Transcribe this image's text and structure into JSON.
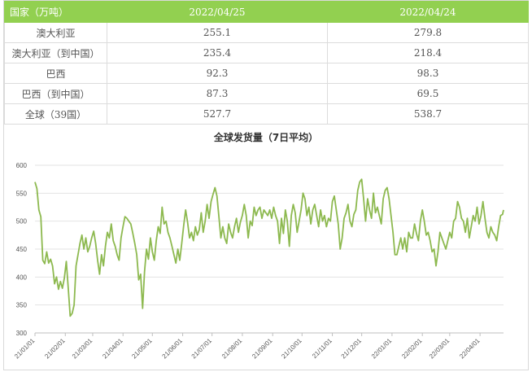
{
  "table": {
    "headers": [
      "国家（万吨）",
      "2022/04/25",
      "2022/04/24"
    ],
    "rows": [
      {
        "country": "澳大利亚",
        "v1": "255.1",
        "v2": "279.8"
      },
      {
        "country": "澳大利亚（到中国）",
        "v1": "235.4",
        "v2": "218.4"
      },
      {
        "country": "巴西",
        "v1": "92.3",
        "v2": "98.3"
      },
      {
        "country": "巴西（到中国）",
        "v1": "87.3",
        "v2": "69.5"
      },
      {
        "country": "全球（39国）",
        "v1": "527.7",
        "v2": "538.7"
      }
    ]
  },
  "chart_data": {
    "type": "line",
    "title": "全球发货量（7日平均）",
    "xlabel": "",
    "ylabel": "",
    "ylim": [
      300,
      600
    ],
    "y_ticks": [
      300,
      350,
      400,
      450,
      500,
      550,
      600
    ],
    "x_ticks": [
      "21/01/01",
      "21/02/01",
      "21/03/01",
      "21/04/01",
      "21/05/01",
      "21/06/01",
      "21/07/01",
      "21/08/01",
      "21/09/01",
      "21/10/01",
      "21/11/01",
      "21/12/01",
      "22/01/01",
      "22/02/01",
      "22/03/01",
      "22/04/01"
    ],
    "x_start": "2021-01-01",
    "x_end": "2022-04-25",
    "grid": true,
    "color": "#8db94f",
    "series": [
      {
        "name": "",
        "points": [
          [
            "2021-01-01",
            570
          ],
          [
            "2021-01-03",
            558
          ],
          [
            "2021-01-05",
            520
          ],
          [
            "2021-01-07",
            508
          ],
          [
            "2021-01-09",
            430
          ],
          [
            "2021-01-11",
            424
          ],
          [
            "2021-01-13",
            445
          ],
          [
            "2021-01-15",
            425
          ],
          [
            "2021-01-17",
            432
          ],
          [
            "2021-01-19",
            420
          ],
          [
            "2021-01-21",
            388
          ],
          [
            "2021-01-23",
            400
          ],
          [
            "2021-01-25",
            378
          ],
          [
            "2021-01-27",
            392
          ],
          [
            "2021-01-29",
            380
          ],
          [
            "2021-01-31",
            398
          ],
          [
            "2021-02-02",
            428
          ],
          [
            "2021-02-04",
            380
          ],
          [
            "2021-02-06",
            330
          ],
          [
            "2021-02-08",
            335
          ],
          [
            "2021-02-10",
            350
          ],
          [
            "2021-02-12",
            420
          ],
          [
            "2021-02-14",
            440
          ],
          [
            "2021-02-16",
            460
          ],
          [
            "2021-02-18",
            475
          ],
          [
            "2021-02-20",
            450
          ],
          [
            "2021-02-22",
            470
          ],
          [
            "2021-02-24",
            445
          ],
          [
            "2021-02-26",
            455
          ],
          [
            "2021-02-28",
            470
          ],
          [
            "2021-03-02",
            482
          ],
          [
            "2021-03-04",
            460
          ],
          [
            "2021-03-06",
            430
          ],
          [
            "2021-03-08",
            405
          ],
          [
            "2021-03-10",
            440
          ],
          [
            "2021-03-12",
            420
          ],
          [
            "2021-03-14",
            455
          ],
          [
            "2021-03-16",
            480
          ],
          [
            "2021-03-18",
            470
          ],
          [
            "2021-03-20",
            495
          ],
          [
            "2021-03-22",
            465
          ],
          [
            "2021-03-24",
            455
          ],
          [
            "2021-03-26",
            440
          ],
          [
            "2021-03-28",
            430
          ],
          [
            "2021-03-30",
            470
          ],
          [
            "2021-04-01",
            490
          ],
          [
            "2021-04-03",
            508
          ],
          [
            "2021-04-05",
            505
          ],
          [
            "2021-04-07",
            500
          ],
          [
            "2021-04-09",
            495
          ],
          [
            "2021-04-11",
            478
          ],
          [
            "2021-04-13",
            460
          ],
          [
            "2021-04-15",
            440
          ],
          [
            "2021-04-17",
            395
          ],
          [
            "2021-04-19",
            405
          ],
          [
            "2021-04-21",
            344
          ],
          [
            "2021-04-23",
            410
          ],
          [
            "2021-04-25",
            450
          ],
          [
            "2021-04-27",
            432
          ],
          [
            "2021-04-29",
            470
          ],
          [
            "2021-05-01",
            445
          ],
          [
            "2021-05-03",
            430
          ],
          [
            "2021-05-05",
            465
          ],
          [
            "2021-05-07",
            490
          ],
          [
            "2021-05-09",
            478
          ],
          [
            "2021-05-11",
            525
          ],
          [
            "2021-05-13",
            495
          ],
          [
            "2021-05-15",
            500
          ],
          [
            "2021-05-17",
            480
          ],
          [
            "2021-05-19",
            470
          ],
          [
            "2021-05-21",
            455
          ],
          [
            "2021-05-23",
            440
          ],
          [
            "2021-05-25",
            425
          ],
          [
            "2021-05-27",
            450
          ],
          [
            "2021-05-29",
            430
          ],
          [
            "2021-05-31",
            460
          ],
          [
            "2021-06-02",
            492
          ],
          [
            "2021-06-04",
            520
          ],
          [
            "2021-06-06",
            498
          ],
          [
            "2021-06-08",
            470
          ],
          [
            "2021-06-10",
            480
          ],
          [
            "2021-06-12",
            465
          ],
          [
            "2021-06-14",
            490
          ],
          [
            "2021-06-16",
            475
          ],
          [
            "2021-06-18",
            485
          ],
          [
            "2021-06-20",
            515
          ],
          [
            "2021-06-22",
            480
          ],
          [
            "2021-06-24",
            500
          ],
          [
            "2021-06-26",
            530
          ],
          [
            "2021-06-28",
            505
          ],
          [
            "2021-06-30",
            535
          ],
          [
            "2021-07-02",
            548
          ],
          [
            "2021-07-04",
            560
          ],
          [
            "2021-07-06",
            545
          ],
          [
            "2021-07-08",
            508
          ],
          [
            "2021-07-10",
            470
          ],
          [
            "2021-07-12",
            490
          ],
          [
            "2021-07-14",
            470
          ],
          [
            "2021-07-16",
            460
          ],
          [
            "2021-07-18",
            495
          ],
          [
            "2021-07-20",
            480
          ],
          [
            "2021-07-22",
            470
          ],
          [
            "2021-07-24",
            490
          ],
          [
            "2021-07-26",
            505
          ],
          [
            "2021-07-28",
            480
          ],
          [
            "2021-07-30",
            498
          ],
          [
            "2021-08-01",
            510
          ],
          [
            "2021-08-03",
            530
          ],
          [
            "2021-08-05",
            510
          ],
          [
            "2021-08-07",
            470
          ],
          [
            "2021-08-09",
            500
          ],
          [
            "2021-08-11",
            492
          ],
          [
            "2021-08-13",
            525
          ],
          [
            "2021-08-15",
            510
          ],
          [
            "2021-08-17",
            520
          ],
          [
            "2021-08-19",
            525
          ],
          [
            "2021-08-21",
            505
          ],
          [
            "2021-08-23",
            520
          ],
          [
            "2021-08-25",
            515
          ],
          [
            "2021-08-27",
            510
          ],
          [
            "2021-08-29",
            520
          ],
          [
            "2021-08-31",
            505
          ],
          [
            "2021-09-02",
            525
          ],
          [
            "2021-09-04",
            510
          ],
          [
            "2021-09-06",
            500
          ],
          [
            "2021-09-08",
            460
          ],
          [
            "2021-09-10",
            505
          ],
          [
            "2021-09-12",
            478
          ],
          [
            "2021-09-14",
            520
          ],
          [
            "2021-09-16",
            500
          ],
          [
            "2021-09-18",
            455
          ],
          [
            "2021-09-20",
            510
          ],
          [
            "2021-09-22",
            530
          ],
          [
            "2021-09-24",
            515
          ],
          [
            "2021-09-26",
            480
          ],
          [
            "2021-09-28",
            500
          ],
          [
            "2021-09-30",
            520
          ],
          [
            "2021-10-02",
            550
          ],
          [
            "2021-10-04",
            540
          ],
          [
            "2021-10-06",
            510
          ],
          [
            "2021-10-08",
            525
          ],
          [
            "2021-10-10",
            495
          ],
          [
            "2021-10-12",
            520
          ],
          [
            "2021-10-14",
            530
          ],
          [
            "2021-10-16",
            510
          ],
          [
            "2021-10-18",
            490
          ],
          [
            "2021-10-20",
            520
          ],
          [
            "2021-10-22",
            500
          ],
          [
            "2021-10-24",
            510
          ],
          [
            "2021-10-26",
            490
          ],
          [
            "2021-10-28",
            505
          ],
          [
            "2021-10-30",
            500
          ],
          [
            "2021-11-01",
            535
          ],
          [
            "2021-11-03",
            545
          ],
          [
            "2021-11-05",
            520
          ],
          [
            "2021-11-07",
            495
          ],
          [
            "2021-11-09",
            450
          ],
          [
            "2021-11-11",
            470
          ],
          [
            "2021-11-13",
            505
          ],
          [
            "2021-11-15",
            515
          ],
          [
            "2021-11-17",
            530
          ],
          [
            "2021-11-19",
            500
          ],
          [
            "2021-11-21",
            490
          ],
          [
            "2021-11-23",
            512
          ],
          [
            "2021-11-25",
            520
          ],
          [
            "2021-11-27",
            555
          ],
          [
            "2021-11-29",
            570
          ],
          [
            "2021-12-01",
            575
          ],
          [
            "2021-12-03",
            540
          ],
          [
            "2021-12-05",
            500
          ],
          [
            "2021-12-07",
            540
          ],
          [
            "2021-12-09",
            520
          ],
          [
            "2021-12-11",
            505
          ],
          [
            "2021-12-13",
            550
          ],
          [
            "2021-12-15",
            515
          ],
          [
            "2021-12-17",
            525
          ],
          [
            "2021-12-19",
            510
          ],
          [
            "2021-12-21",
            495
          ],
          [
            "2021-12-23",
            540
          ],
          [
            "2021-12-25",
            555
          ],
          [
            "2021-12-27",
            560
          ],
          [
            "2021-12-29",
            540
          ],
          [
            "2021-12-31",
            510
          ],
          [
            "2022-01-02",
            480
          ],
          [
            "2022-01-04",
            440
          ],
          [
            "2022-01-06",
            440
          ],
          [
            "2022-01-08",
            455
          ],
          [
            "2022-01-10",
            470
          ],
          [
            "2022-01-12",
            450
          ],
          [
            "2022-01-14",
            470
          ],
          [
            "2022-01-16",
            445
          ],
          [
            "2022-01-18",
            480
          ],
          [
            "2022-01-20",
            470
          ],
          [
            "2022-01-22",
            470
          ],
          [
            "2022-01-24",
            495
          ],
          [
            "2022-01-26",
            478
          ],
          [
            "2022-01-28",
            465
          ],
          [
            "2022-01-30",
            500
          ],
          [
            "2022-02-01",
            520
          ],
          [
            "2022-02-03",
            500
          ],
          [
            "2022-02-05",
            475
          ],
          [
            "2022-02-07",
            480
          ],
          [
            "2022-02-09",
            465
          ],
          [
            "2022-02-11",
            445
          ],
          [
            "2022-02-13",
            450
          ],
          [
            "2022-02-15",
            420
          ],
          [
            "2022-02-17",
            445
          ],
          [
            "2022-02-19",
            480
          ],
          [
            "2022-02-21",
            470
          ],
          [
            "2022-02-23",
            460
          ],
          [
            "2022-02-25",
            450
          ],
          [
            "2022-02-27",
            465
          ],
          [
            "2022-03-01",
            480
          ],
          [
            "2022-03-03",
            470
          ],
          [
            "2022-03-05",
            500
          ],
          [
            "2022-03-07",
            505
          ],
          [
            "2022-03-09",
            535
          ],
          [
            "2022-03-11",
            525
          ],
          [
            "2022-03-13",
            505
          ],
          [
            "2022-03-15",
            500
          ],
          [
            "2022-03-17",
            480
          ],
          [
            "2022-03-19",
            505
          ],
          [
            "2022-03-21",
            470
          ],
          [
            "2022-03-23",
            490
          ],
          [
            "2022-03-25",
            510
          ],
          [
            "2022-03-27",
            500
          ],
          [
            "2022-03-29",
            525
          ],
          [
            "2022-03-31",
            495
          ],
          [
            "2022-04-02",
            510
          ],
          [
            "2022-04-04",
            535
          ],
          [
            "2022-04-06",
            505
          ],
          [
            "2022-04-08",
            480
          ],
          [
            "2022-04-10",
            470
          ],
          [
            "2022-04-12",
            490
          ],
          [
            "2022-04-14",
            480
          ],
          [
            "2022-04-16",
            475
          ],
          [
            "2022-04-18",
            465
          ],
          [
            "2022-04-20",
            490
          ],
          [
            "2022-04-22",
            510
          ],
          [
            "2022-04-24",
            512
          ],
          [
            "2022-04-25",
            520
          ]
        ]
      }
    ]
  }
}
